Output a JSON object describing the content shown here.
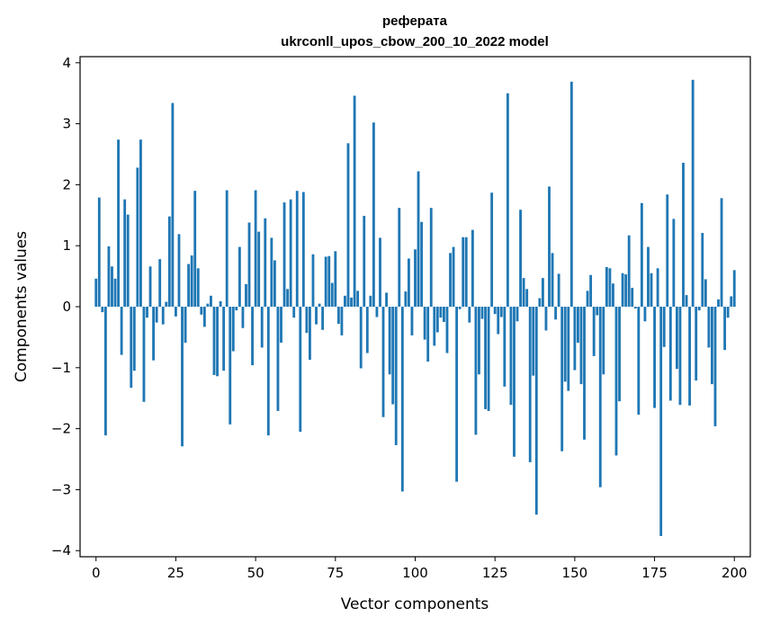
{
  "chart_data": {
    "type": "bar",
    "title_line1": "реферата",
    "title_line2": "ukrconll_upos_cbow_200_10_2022 model",
    "xlabel": "Vector components",
    "ylabel": "Components values",
    "xlim": [
      -5,
      205
    ],
    "ylim": [
      -4.1,
      4.1
    ],
    "xticks": [
      0,
      25,
      50,
      75,
      100,
      125,
      150,
      175,
      200
    ],
    "yticks": [
      -4,
      -3,
      -2,
      -1,
      0,
      1,
      2,
      3,
      4
    ],
    "xtick_labels": [
      "0",
      "25",
      "50",
      "75",
      "100",
      "125",
      "150",
      "175",
      "200"
    ],
    "ytick_labels": [
      "−4",
      "−3",
      "−2",
      "−1",
      "0",
      "1",
      "2",
      "3",
      "4"
    ],
    "color": "#1f77b4",
    "grid": false,
    "values": [
      0.46,
      1.79,
      -0.09,
      -2.11,
      0.99,
      0.66,
      0.46,
      2.74,
      -0.79,
      1.76,
      1.51,
      -1.33,
      -1.05,
      2.28,
      2.74,
      -1.56,
      -0.18,
      0.66,
      -0.88,
      -0.26,
      0.78,
      -0.29,
      0.08,
      1.48,
      3.34,
      -0.16,
      1.19,
      -2.29,
      -0.59,
      0.7,
      0.84,
      1.9,
      0.63,
      -0.13,
      -0.33,
      0.05,
      0.18,
      -1.12,
      -1.14,
      0.09,
      -1.05,
      1.91,
      -1.93,
      -0.73,
      -0.06,
      0.98,
      -0.35,
      0.37,
      1.38,
      -0.96,
      1.91,
      1.23,
      -0.67,
      1.45,
      -2.11,
      1.13,
      0.76,
      -1.71,
      -0.59,
      1.71,
      0.29,
      1.76,
      -0.18,
      1.9,
      -2.05,
      1.88,
      -0.43,
      -0.87,
      0.86,
      -0.29,
      0.05,
      -0.38,
      0.82,
      0.83,
      0.39,
      0.91,
      -0.28,
      -0.47,
      0.18,
      2.68,
      0.15,
      3.46,
      0.26,
      -1.01,
      1.49,
      -0.76,
      0.18,
      3.02,
      -0.17,
      1.13,
      -1.81,
      0.23,
      -1.11,
      -1.6,
      -2.27,
      1.62,
      -3.03,
      0.25,
      0.79,
      -0.47,
      0.94,
      2.22,
      1.39,
      -0.54,
      -0.9,
      1.62,
      -0.64,
      -0.42,
      -0.18,
      -0.25,
      -0.76,
      0.88,
      0.98,
      -2.87,
      -0.04,
      1.14,
      1.14,
      -0.26,
      1.26,
      -2.1,
      -1.11,
      -0.2,
      -1.68,
      -1.71,
      1.87,
      -0.12,
      -0.45,
      -0.17,
      -1.31,
      3.5,
      -1.61,
      -2.46,
      -0.24,
      1.59,
      0.47,
      0.29,
      -2.55,
      -1.13,
      -3.41,
      0.14,
      0.47,
      -0.39,
      1.97,
      0.88,
      -0.21,
      0.54,
      -2.37,
      -1.23,
      -1.38,
      3.69,
      -1.04,
      -0.59,
      -1.27,
      -2.18,
      0.26,
      0.52,
      -0.81,
      -0.14,
      -2.96,
      -1.11,
      0.65,
      0.63,
      0.38,
      -2.44,
      -1.55,
      0.55,
      0.53,
      1.17,
      0.31,
      -0.03,
      -1.77,
      1.7,
      -0.24,
      0.98,
      0.55,
      -1.66,
      0.63,
      -3.76,
      -0.66,
      1.84,
      -1.54,
      1.44,
      -1.02,
      -1.61,
      2.36,
      0.19,
      -1.62,
      3.72,
      -1.21,
      -0.06,
      1.21,
      0.45,
      -0.67,
      -1.27,
      -1.96,
      0.12,
      1.78,
      -0.71,
      -0.18,
      0.17,
      0.6
    ]
  }
}
